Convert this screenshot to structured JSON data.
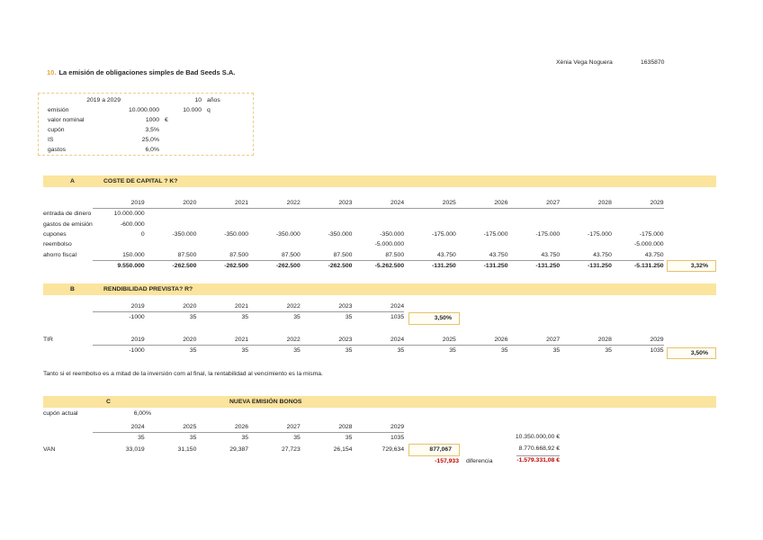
{
  "colors": {
    "accent_bar": "#fbe49e",
    "highlight_border": "#e5c36c",
    "highlight_fill": "#fffdf4",
    "box_border": "#eccc84",
    "rule_gray": "#9d9d9d",
    "negative_red": "#c00000",
    "title_number": "#e8a33c"
  },
  "header": {
    "student": "Xènia Vega Noguera",
    "student_id": "1635870"
  },
  "title": {
    "number": "10.",
    "text": "La emisión de obligaciones simples de Bad Seeds S.A."
  },
  "params": {
    "rows": [
      {
        "label": "",
        "v": "2019  a 2029",
        "v2": "10",
        "u2": "años"
      },
      {
        "label": "emisión",
        "v": "10.000.000",
        "v2": "10.000",
        "u2": "q"
      },
      {
        "label": "valor nominal",
        "v": "1000",
        "u": "€"
      },
      {
        "label": "cupón",
        "v": "3,5%"
      },
      {
        "label": "IS",
        "v": "25,0%"
      },
      {
        "label": "gastos",
        "v": "6,0%"
      }
    ]
  },
  "sectionA": {
    "letter": "A",
    "heading": "COSTE DE CAPITAL ? K?",
    "table": {
      "label": "",
      "years": [
        "2019",
        "2020",
        "2021",
        "2022",
        "2023",
        "2024",
        "2025",
        "2026",
        "2027",
        "2028",
        "2029"
      ],
      "rows": [
        {
          "label": "entrada de dinero",
          "cells": [
            "10.000.000",
            "",
            "",
            "",
            "",
            "",
            "",
            "",
            "",
            "",
            ""
          ]
        },
        {
          "label": "gastos de emisión",
          "cells": [
            "-600.000",
            "",
            "",
            "",
            "",
            "",
            "",
            "",
            "",
            "",
            ""
          ]
        },
        {
          "label": "cupones",
          "cells": [
            "0",
            "-350.000",
            "-350.000",
            "-350.000",
            "-350.000",
            "-350.000",
            "-175.000",
            "-175.000",
            "-175.000",
            "-175.000",
            "-175.000"
          ]
        },
        {
          "label": "reembolso",
          "cells": [
            "",
            "",
            "",
            "",
            "",
            "-5.000.000",
            "",
            "",
            "",
            "",
            "-5.000.000"
          ]
        },
        {
          "label": "ahorro fiscal",
          "cells": [
            "150.000",
            "87.500",
            "87.500",
            "87.500",
            "87.500",
            "87.500",
            "43.750",
            "43.750",
            "43.750",
            "43.750",
            "43.750"
          ]
        },
        {
          "label": "",
          "cls": "total",
          "cells": [
            "9.550.000",
            "-262.500",
            "-262.500",
            "-262.500",
            "-262.500",
            "-5.262.500",
            "-131.250",
            "-131.250",
            "-131.250",
            "-131.250",
            "-5.131.250"
          ]
        }
      ]
    },
    "result": "3,32%"
  },
  "sectionB": {
    "letter": "B",
    "heading": "RENDIBILIDAD PREVISTA? R?",
    "table1": {
      "label": "",
      "years": [
        "2019",
        "2020",
        "2021",
        "2022",
        "2023",
        "2024"
      ],
      "rows": [
        {
          "label": "",
          "cells": [
            "-1000",
            "35",
            "35",
            "35",
            "35",
            "1035"
          ]
        }
      ]
    },
    "result1": "3,50%",
    "tir_table": {
      "label": "TIR",
      "years": [
        "2019",
        "2020",
        "2021",
        "2022",
        "2023",
        "2024",
        "2025",
        "2026",
        "2027",
        "2028",
        "2029"
      ],
      "rows": [
        {
          "label": "",
          "cells": [
            "-1000",
            "35",
            "35",
            "35",
            "35",
            "35",
            "35",
            "35",
            "35",
            "35",
            "1035"
          ]
        }
      ]
    },
    "result2": "3,50%",
    "note": "Tanto si el reembolso es a mitad de la inversión com al final, la rentabilidad al vencimiento es la misma."
  },
  "sectionC": {
    "letter": "C",
    "heading": "NUEVA EMISIÓN BONOS",
    "cupon_label": "cupón actual",
    "cupon_value": "6,00%",
    "table": {
      "label": "",
      "years": [
        "2024",
        "2025",
        "2026",
        "2027",
        "2028",
        "2029"
      ],
      "rows": [
        {
          "label": "",
          "cells": [
            "35",
            "35",
            "35",
            "35",
            "35",
            "1035"
          ]
        },
        {
          "label": "VAN",
          "cls": "tall",
          "cells": [
            "33,019",
            "31,150",
            "29,387",
            "27,723",
            "26,154",
            "729,634"
          ]
        }
      ]
    },
    "result": "877,067",
    "diff_value": "-157,933",
    "diff_label": "diferencia",
    "totals": {
      "nominal": "10.350.000,00 €",
      "actual": "8.770.668,92 €",
      "difference": "-1.579.331,08 €"
    }
  }
}
